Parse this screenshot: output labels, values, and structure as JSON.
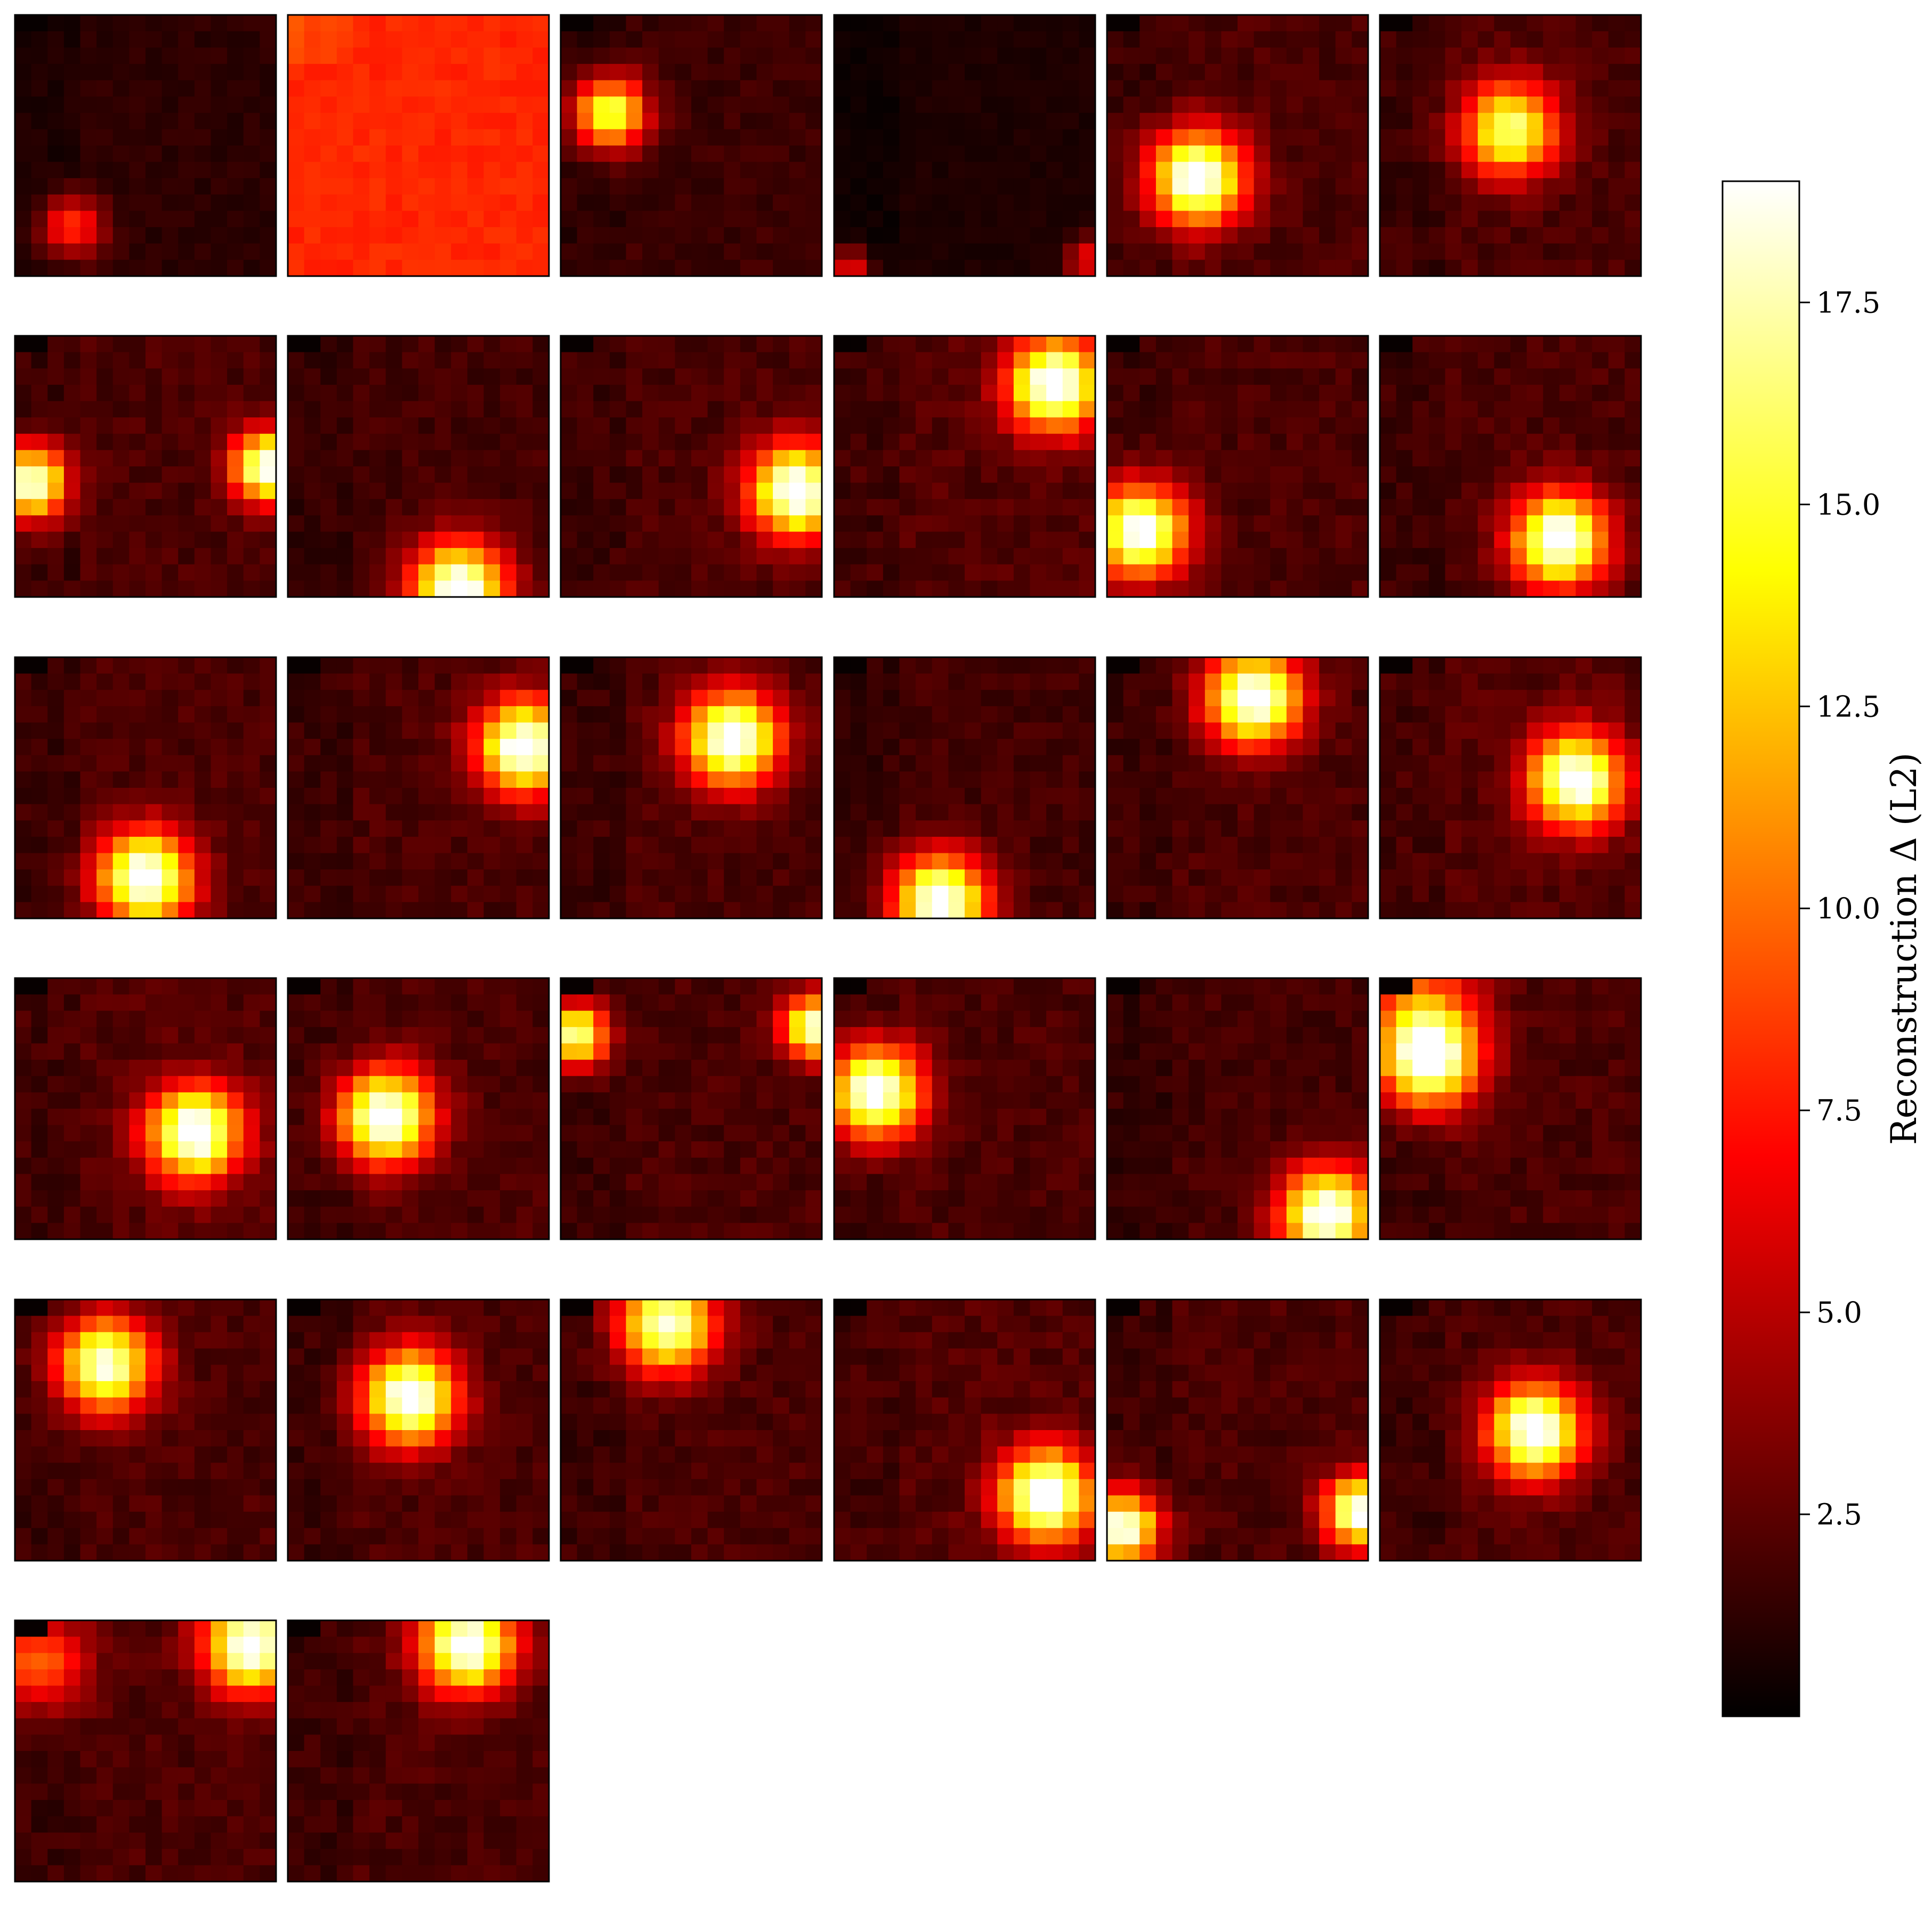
{
  "chart_data": {
    "type": "heatmap",
    "grid": {
      "rows": 6,
      "cols": 6,
      "panels_shown": 32
    },
    "panel_resolution": [
      16,
      16
    ],
    "colormap": "hot",
    "colorbar": {
      "label": "Reconstruction Δ (L2)",
      "range": [
        0,
        19
      ],
      "ticks": [
        2.5,
        5.0,
        7.5,
        10.0,
        12.5,
        15.0,
        17.5
      ],
      "tick_labels": [
        "2.5",
        "5.0",
        "7.5",
        "10.0",
        "12.5",
        "15.0",
        "17.5"
      ],
      "placement": "right"
    },
    "axes_ticks": "none",
    "panels": [
      {
        "index": 1,
        "uniform": false,
        "background": 1.2,
        "spots": [
          {
            "row": 12.5,
            "col": 3.0,
            "peak": 7.5,
            "size": 1.3
          }
        ]
      },
      {
        "index": 2,
        "uniform": true,
        "background": 8.0,
        "spots": []
      },
      {
        "index": 3,
        "uniform": false,
        "background": 1.6,
        "spots": [
          {
            "row": 5.5,
            "col": 2.5,
            "peak": 15.0,
            "size": 1.5
          }
        ]
      },
      {
        "index": 4,
        "uniform": false,
        "background": 0.8,
        "spots": [
          {
            "row": 15.0,
            "col": 0.5,
            "peak": 6.5,
            "size": 0.8
          },
          {
            "row": 14.5,
            "col": 15.0,
            "peak": 6.0,
            "size": 0.9
          }
        ]
      },
      {
        "index": 5,
        "uniform": false,
        "background": 2.0,
        "spots": [
          {
            "row": 9.5,
            "col": 5.0,
            "peak": 18.5,
            "size": 2.0
          }
        ]
      },
      {
        "index": 6,
        "uniform": false,
        "background": 2.0,
        "spots": [
          {
            "row": 6.5,
            "col": 7.5,
            "peak": 15.0,
            "size": 2.0
          }
        ]
      },
      {
        "index": 7,
        "uniform": false,
        "background": 2.0,
        "spots": [
          {
            "row": 8.5,
            "col": 0.5,
            "peak": 18.0,
            "size": 1.5
          },
          {
            "row": 7.5,
            "col": 15.0,
            "peak": 18.0,
            "size": 1.5
          }
        ]
      },
      {
        "index": 8,
        "uniform": false,
        "background": 1.8,
        "spots": [
          {
            "row": 15.0,
            "col": 10.0,
            "peak": 18.5,
            "size": 2.0
          }
        ]
      },
      {
        "index": 9,
        "uniform": false,
        "background": 2.0,
        "spots": [
          {
            "row": 9.0,
            "col": 14.0,
            "peak": 18.5,
            "size": 2.0
          }
        ]
      },
      {
        "index": 10,
        "uniform": false,
        "background": 2.2,
        "spots": [
          {
            "row": 2.5,
            "col": 13.0,
            "peak": 18.5,
            "size": 2.0
          }
        ]
      },
      {
        "index": 11,
        "uniform": false,
        "background": 2.0,
        "spots": [
          {
            "row": 11.5,
            "col": 1.5,
            "peak": 18.5,
            "size": 2.0
          }
        ]
      },
      {
        "index": 12,
        "uniform": false,
        "background": 2.0,
        "spots": [
          {
            "row": 12.0,
            "col": 10.5,
            "peak": 18.5,
            "size": 2.0
          }
        ]
      },
      {
        "index": 13,
        "uniform": false,
        "background": 2.0,
        "spots": [
          {
            "row": 13.0,
            "col": 7.5,
            "peak": 18.5,
            "size": 2.0
          }
        ]
      },
      {
        "index": 14,
        "uniform": false,
        "background": 2.0,
        "spots": [
          {
            "row": 5.0,
            "col": 14.0,
            "peak": 18.5,
            "size": 2.0
          }
        ]
      },
      {
        "index": 15,
        "uniform": false,
        "background": 2.0,
        "spots": [
          {
            "row": 4.5,
            "col": 10.0,
            "peak": 18.5,
            "size": 2.0
          }
        ]
      },
      {
        "index": 16,
        "uniform": false,
        "background": 1.8,
        "spots": [
          {
            "row": 14.5,
            "col": 6.0,
            "peak": 18.5,
            "size": 2.0
          }
        ]
      },
      {
        "index": 17,
        "uniform": false,
        "background": 2.0,
        "spots": [
          {
            "row": 2.0,
            "col": 8.5,
            "peak": 18.5,
            "size": 2.0
          }
        ]
      },
      {
        "index": 18,
        "uniform": false,
        "background": 2.2,
        "spots": [
          {
            "row": 7.0,
            "col": 11.5,
            "peak": 18.5,
            "size": 2.0
          }
        ]
      },
      {
        "index": 19,
        "uniform": false,
        "background": 2.2,
        "spots": [
          {
            "row": 9.0,
            "col": 10.5,
            "peak": 18.5,
            "size": 2.0
          }
        ]
      },
      {
        "index": 20,
        "uniform": false,
        "background": 2.0,
        "spots": [
          {
            "row": 8.0,
            "col": 5.5,
            "peak": 18.5,
            "size": 2.0
          }
        ]
      },
      {
        "index": 21,
        "uniform": false,
        "background": 2.0,
        "spots": [
          {
            "row": 3.0,
            "col": 0.5,
            "peak": 16.0,
            "size": 1.3
          },
          {
            "row": 2.5,
            "col": 15.0,
            "peak": 17.0,
            "size": 1.3
          }
        ]
      },
      {
        "index": 22,
        "uniform": false,
        "background": 2.0,
        "spots": [
          {
            "row": 6.5,
            "col": 2.0,
            "peak": 18.5,
            "size": 2.0
          }
        ]
      },
      {
        "index": 23,
        "uniform": false,
        "background": 1.8,
        "spots": [
          {
            "row": 14.0,
            "col": 13.0,
            "peak": 18.5,
            "size": 2.0
          }
        ]
      },
      {
        "index": 24,
        "uniform": false,
        "background": 2.0,
        "spots": [
          {
            "row": 4.5,
            "col": 2.5,
            "peak": 18.5,
            "size": 2.0
          },
          {
            "row": 1.0,
            "col": 2.0,
            "peak": 7.0,
            "size": 2.5
          }
        ]
      },
      {
        "index": 25,
        "uniform": false,
        "background": 2.0,
        "spots": [
          {
            "row": 3.5,
            "col": 5.0,
            "peak": 17.0,
            "size": 2.0
          }
        ]
      },
      {
        "index": 26,
        "uniform": false,
        "background": 2.0,
        "spots": [
          {
            "row": 5.5,
            "col": 7.0,
            "peak": 18.5,
            "size": 2.0
          }
        ]
      },
      {
        "index": 27,
        "uniform": false,
        "background": 2.0,
        "spots": [
          {
            "row": 1.0,
            "col": 6.0,
            "peak": 17.0,
            "size": 2.0
          }
        ]
      },
      {
        "index": 28,
        "uniform": false,
        "background": 2.2,
        "spots": [
          {
            "row": 11.5,
            "col": 12.5,
            "peak": 18.5,
            "size": 2.0
          }
        ]
      },
      {
        "index": 29,
        "uniform": false,
        "background": 2.0,
        "spots": [
          {
            "row": 12.5,
            "col": 15.0,
            "peak": 18.0,
            "size": 1.5
          },
          {
            "row": 13.5,
            "col": 0.5,
            "peak": 18.0,
            "size": 1.5
          }
        ]
      },
      {
        "index": 30,
        "uniform": false,
        "background": 2.0,
        "spots": [
          {
            "row": 7.5,
            "col": 9.0,
            "peak": 18.5,
            "size": 2.0
          }
        ]
      },
      {
        "index": 31,
        "uniform": false,
        "background": 2.0,
        "spots": [
          {
            "row": 1.0,
            "col": 14.0,
            "peak": 18.5,
            "size": 2.0
          },
          {
            "row": 2.0,
            "col": 1.0,
            "peak": 8.0,
            "size": 2.0
          }
        ]
      },
      {
        "index": 32,
        "uniform": false,
        "background": 2.0,
        "spots": [
          {
            "row": 1.0,
            "col": 10.5,
            "peak": 18.5,
            "size": 2.0
          }
        ]
      }
    ]
  }
}
